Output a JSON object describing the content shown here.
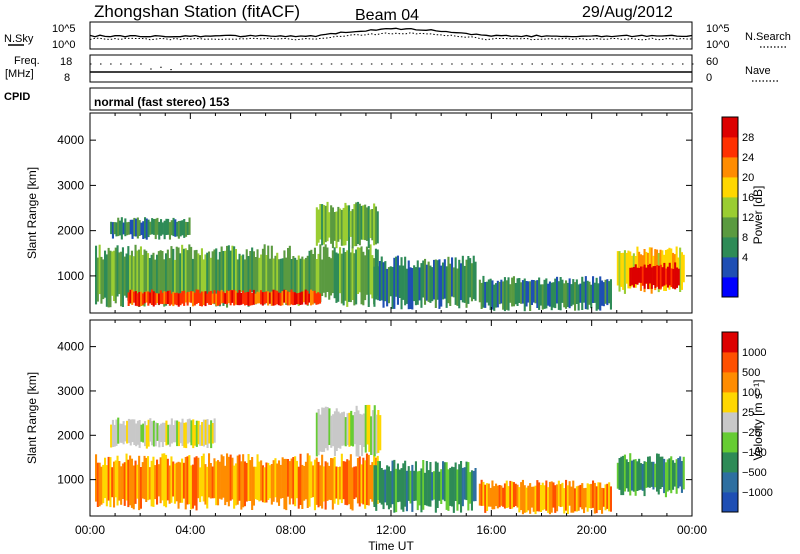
{
  "header": {
    "station_title": "Zhongshan Station (fitACF)",
    "beam": "Beam 04",
    "date": "29/Aug/2012"
  },
  "noise_panel": {
    "left_label": "N.Sky",
    "right_label": "N.Search",
    "left_ticks": [
      "10^5",
      "10^0"
    ],
    "right_ticks": [
      "10^5",
      "10^0"
    ]
  },
  "freq_panel": {
    "left_label_1": "Freq.",
    "left_label_2": "[MHz]",
    "left_ticks": [
      "18",
      "8"
    ],
    "right_label": "Nave",
    "right_ticks": [
      "60",
      "0"
    ]
  },
  "cpid": {
    "label": "CPID",
    "text": "normal (fast stereo) 153"
  },
  "chart_data": [
    {
      "type": "heatmap",
      "name": "power",
      "ylabel": "Slant Range [km]",
      "ylim": [
        180,
        4600
      ],
      "yticks": [
        1000,
        2000,
        3000,
        4000
      ],
      "xlim": [
        0,
        24
      ],
      "colorbar_label": "Power [dB]",
      "colorbar_ticks": [
        "28",
        "24",
        "20",
        "16",
        "12",
        "8",
        "4"
      ],
      "colors": [
        "#0000ff",
        "#1f4fb4",
        "#2e8b57",
        "#5a9a40",
        "#9acd32",
        "#ffd700",
        "#ff8c00",
        "#ff3000",
        "#dd0000"
      ],
      "regions": [
        {
          "t0": 0.2,
          "t1": 11.5,
          "r0": 300,
          "r1": 1700,
          "level": 3
        },
        {
          "t0": 1.5,
          "t1": 9.2,
          "r0": 320,
          "r1": 700,
          "level": 7
        },
        {
          "t0": 0.8,
          "t1": 4.0,
          "r0": 1800,
          "r1": 2300,
          "level": 2
        },
        {
          "t0": 9.0,
          "t1": 11.5,
          "r0": 1600,
          "r1": 2650,
          "level": 3
        },
        {
          "t0": 11.3,
          "t1": 15.4,
          "r0": 250,
          "r1": 1450,
          "level": 2
        },
        {
          "t0": 15.5,
          "t1": 20.8,
          "r0": 220,
          "r1": 1000,
          "level": 2
        },
        {
          "t0": 21.0,
          "t1": 23.7,
          "r0": 600,
          "r1": 1650,
          "level": 5
        },
        {
          "t0": 21.5,
          "t1": 23.5,
          "r0": 700,
          "r1": 1300,
          "level": 8
        }
      ]
    },
    {
      "type": "heatmap",
      "name": "velocity",
      "ylabel": "Slant Range [km]",
      "ylim": [
        180,
        4600
      ],
      "yticks": [
        1000,
        2000,
        3000,
        4000
      ],
      "xlim": [
        0,
        24
      ],
      "xticks": [
        "00:00",
        "04:00",
        "08:00",
        "12:00",
        "16:00",
        "20:00",
        "00:00"
      ],
      "xlabel": "Time UT",
      "colorbar_label": "Velocity [m s⁻¹]",
      "colorbar_ticks": [
        "1000",
        "500",
        "100",
        "25",
        "−25",
        "−100",
        "−500",
        "−1000"
      ],
      "colors": [
        "#1f4fb4",
        "#2e6fa0",
        "#2e8b57",
        "#66cc33",
        "#c8c8c8",
        "#ffd700",
        "#ff8c00",
        "#ff5000",
        "#dd0000"
      ],
      "regions": [
        {
          "t0": 0.2,
          "t1": 11.5,
          "r0": 300,
          "r1": 1600,
          "level": 6
        },
        {
          "t0": 0.8,
          "t1": 5.0,
          "r0": 1700,
          "r1": 2400,
          "level": 4
        },
        {
          "t0": 9.0,
          "t1": 11.6,
          "r0": 1500,
          "r1": 2700,
          "level": 4
        },
        {
          "t0": 11.3,
          "t1": 15.4,
          "r0": 250,
          "r1": 1450,
          "level": 2
        },
        {
          "t0": 15.5,
          "t1": 20.8,
          "r0": 220,
          "r1": 1000,
          "level": 6
        },
        {
          "t0": 21.0,
          "t1": 23.7,
          "r0": 600,
          "r1": 1600,
          "level": 2
        }
      ]
    }
  ]
}
